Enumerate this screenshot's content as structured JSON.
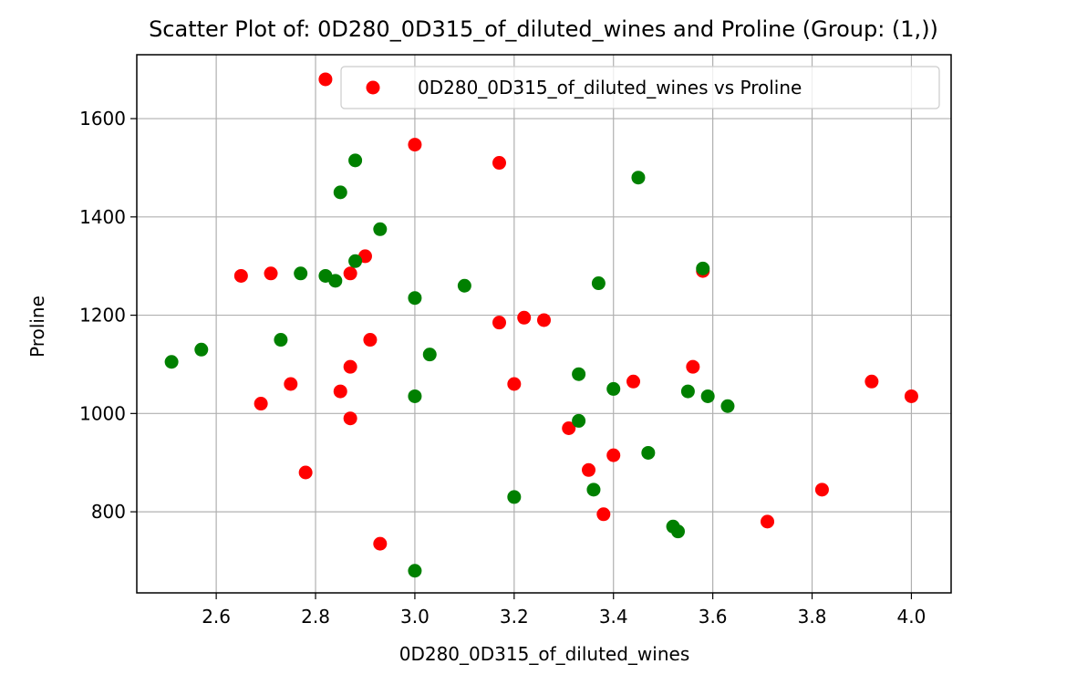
{
  "chart_data": {
    "type": "scatter",
    "title": "Scatter Plot of: 0D280_0D315_of_diluted_wines and Proline (Group: (1,))",
    "xlabel": "0D280_0D315_of_diluted_wines",
    "ylabel": "Proline",
    "xlim": [
      2.44,
      4.08
    ],
    "ylim": [
      635,
      1730
    ],
    "xticks": [
      2.6,
      2.8,
      3.0,
      3.2,
      3.4,
      3.6,
      3.8,
      4.0
    ],
    "xtick_labels": [
      "2.6",
      "2.8",
      "3.0",
      "3.2",
      "3.4",
      "3.6",
      "3.8",
      "4.0"
    ],
    "yticks": [
      800,
      1000,
      1200,
      1400,
      1600
    ],
    "ytick_labels": [
      "800",
      "1000",
      "1200",
      "1400",
      "1600"
    ],
    "grid": true,
    "legend": {
      "placement": "top-right",
      "entries": [
        {
          "label": "0D280_0D315_of_diluted_wines vs Proline",
          "color": "#ff0000"
        }
      ]
    },
    "series": [
      {
        "color": "#ff0000",
        "points": [
          [
            2.82,
            1680
          ],
          [
            3.0,
            1547
          ],
          [
            3.17,
            1510
          ],
          [
            2.65,
            1280
          ],
          [
            2.71,
            1285
          ],
          [
            2.87,
            1285
          ],
          [
            2.9,
            1320
          ],
          [
            3.58,
            1290
          ],
          [
            3.17,
            1185
          ],
          [
            3.22,
            1195
          ],
          [
            3.26,
            1190
          ],
          [
            2.91,
            1150
          ],
          [
            2.87,
            1095
          ],
          [
            3.56,
            1095
          ],
          [
            2.75,
            1060
          ],
          [
            3.2,
            1060
          ],
          [
            3.44,
            1065
          ],
          [
            3.92,
            1065
          ],
          [
            2.85,
            1045
          ],
          [
            4.0,
            1035
          ],
          [
            2.69,
            1020
          ],
          [
            2.87,
            990
          ],
          [
            3.31,
            970
          ],
          [
            3.4,
            915
          ],
          [
            3.35,
            885
          ],
          [
            2.78,
            880
          ],
          [
            3.82,
            845
          ],
          [
            3.38,
            795
          ],
          [
            3.71,
            780
          ],
          [
            2.93,
            735
          ]
        ]
      },
      {
        "color": "#008000",
        "points": [
          [
            2.88,
            1515
          ],
          [
            3.45,
            1480
          ],
          [
            2.85,
            1450
          ],
          [
            2.93,
            1375
          ],
          [
            2.88,
            1310
          ],
          [
            3.58,
            1295
          ],
          [
            2.77,
            1285
          ],
          [
            2.82,
            1280
          ],
          [
            2.84,
            1270
          ],
          [
            3.37,
            1265
          ],
          [
            3.1,
            1260
          ],
          [
            3.0,
            1235
          ],
          [
            2.73,
            1150
          ],
          [
            2.57,
            1130
          ],
          [
            3.03,
            1120
          ],
          [
            2.51,
            1105
          ],
          [
            3.33,
            1080
          ],
          [
            3.4,
            1050
          ],
          [
            3.55,
            1045
          ],
          [
            3.0,
            1035
          ],
          [
            3.59,
            1035
          ],
          [
            3.63,
            1015
          ],
          [
            3.33,
            985
          ],
          [
            3.47,
            920
          ],
          [
            3.36,
            845
          ],
          [
            3.2,
            830
          ],
          [
            3.52,
            770
          ],
          [
            3.53,
            760
          ],
          [
            3.0,
            680
          ]
        ]
      }
    ]
  }
}
